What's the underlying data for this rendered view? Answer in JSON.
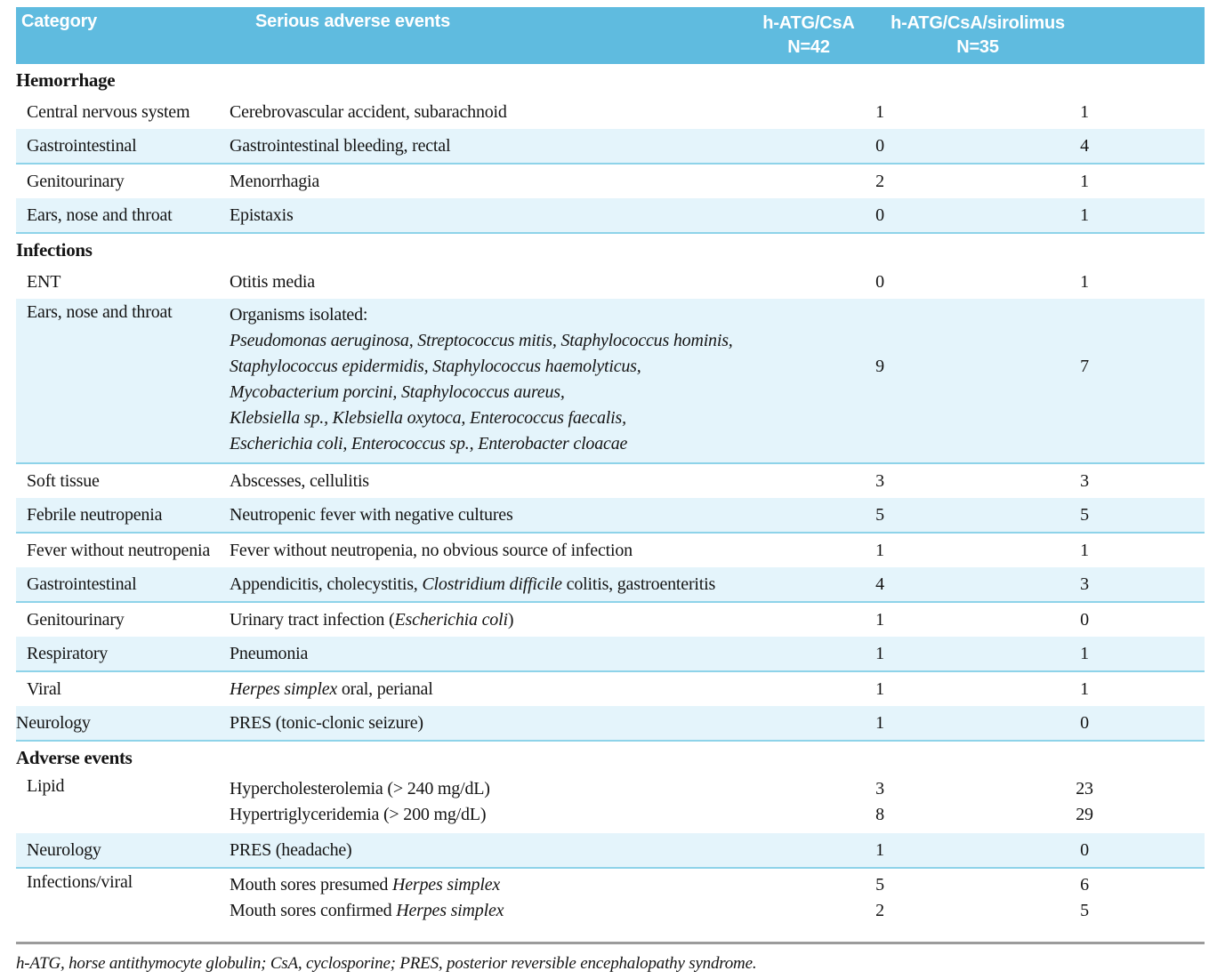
{
  "colors": {
    "header_bg": "#5fbbdf",
    "header_text": "#ffffff",
    "stripe_bg": "#e4f4fb",
    "stripe_line": "#8ed3e9",
    "body_text": "#141414",
    "footnote_rule": "#9b9b9b"
  },
  "header": {
    "category": "Category",
    "events": "Serious adverse events",
    "arm1": {
      "name": "h-ATG/CsA",
      "n": "N=42"
    },
    "arm2": {
      "name": "h-ATG/CsA/sirolimus",
      "n": "N=35"
    }
  },
  "sections": [
    {
      "title": "Hemorrhage",
      "rows": [
        {
          "category": "Central nervous system",
          "indent": true,
          "stripe": false,
          "events": [
            [
              {
                "t": "Cerebrovascular accident, subarachnoid"
              }
            ]
          ],
          "arm1": [
            "1"
          ],
          "arm2": [
            "1"
          ]
        },
        {
          "category": "Gastrointestinal",
          "indent": true,
          "stripe": true,
          "events": [
            [
              {
                "t": "Gastrointestinal bleeding, rectal"
              }
            ]
          ],
          "arm1": [
            "0"
          ],
          "arm2": [
            "4"
          ]
        },
        {
          "category": "Genitourinary",
          "indent": true,
          "stripe": false,
          "events": [
            [
              {
                "t": "Menorrhagia"
              }
            ]
          ],
          "arm1": [
            "2"
          ],
          "arm2": [
            "1"
          ]
        },
        {
          "category": "Ears, nose and throat",
          "indent": true,
          "stripe": true,
          "events": [
            [
              {
                "t": "Epistaxis"
              }
            ]
          ],
          "arm1": [
            "0"
          ],
          "arm2": [
            "1"
          ]
        }
      ]
    },
    {
      "title": "Infections",
      "rows": [
        {
          "category": "ENT",
          "indent": true,
          "stripe": false,
          "events": [
            [
              {
                "t": "Otitis media"
              }
            ]
          ],
          "arm1": [
            "0"
          ],
          "arm2": [
            "1"
          ]
        },
        {
          "category": "Ears, nose and throat",
          "indent": true,
          "stripe": true,
          "voff": 2,
          "events": [
            [
              {
                "t": "Organisms isolated:"
              }
            ],
            [
              {
                "t": "Pseudomonas aeruginosa, Streptococcus mitis, Staphylococcus hominis,",
                "i": true
              }
            ],
            [
              {
                "t": "Staphylococcus epidermidis, Staphylococcus haemolyticus,",
                "i": true
              }
            ],
            [
              {
                "t": "Mycobacterium porcini, Staphylococcus aureus,",
                "i": true
              }
            ],
            [
              {
                "t": "Klebsiella sp., Klebsiella oxytoca, Enterococcus faecalis,",
                "i": true
              }
            ],
            [
              {
                "t": "Escherichia coli, Enterococcus sp., Enterobacter cloacae",
                "i": true
              }
            ]
          ],
          "arm1": [
            "9"
          ],
          "arm2": [
            "7"
          ]
        },
        {
          "category": "Soft tissue",
          "indent": true,
          "stripe": false,
          "events": [
            [
              {
                "t": "Abscesses, cellulitis"
              }
            ]
          ],
          "arm1": [
            "3"
          ],
          "arm2": [
            "3"
          ]
        },
        {
          "category": "Febrile neutropenia",
          "indent": true,
          "stripe": true,
          "events": [
            [
              {
                "t": "Neutropenic fever with negative cultures"
              }
            ]
          ],
          "arm1": [
            "5"
          ],
          "arm2": [
            "5"
          ]
        },
        {
          "category": "Fever without neutropenia",
          "indent": true,
          "stripe": false,
          "events": [
            [
              {
                "t": "Fever without neutropenia, no obvious source of infection"
              }
            ]
          ],
          "arm1": [
            "1"
          ],
          "arm2": [
            "1"
          ]
        },
        {
          "category": "Gastrointestinal",
          "indent": true,
          "stripe": true,
          "events": [
            [
              {
                "t": "Appendicitis, cholecystitis, "
              },
              {
                "t": "Clostridium difficile",
                "i": true
              },
              {
                "t": " colitis, gastroenteritis"
              }
            ]
          ],
          "arm1": [
            "4"
          ],
          "arm2": [
            "3"
          ]
        },
        {
          "category": "Genitourinary",
          "indent": true,
          "stripe": false,
          "events": [
            [
              {
                "t": "Urinary tract infection ("
              },
              {
                "t": "Escherichia coli",
                "i": true
              },
              {
                "t": ")"
              }
            ]
          ],
          "arm1": [
            "1"
          ],
          "arm2": [
            "0"
          ]
        },
        {
          "category": "Respiratory",
          "indent": true,
          "stripe": true,
          "events": [
            [
              {
                "t": "Pneumonia"
              }
            ]
          ],
          "arm1": [
            "1"
          ],
          "arm2": [
            "1"
          ]
        },
        {
          "category": "Viral",
          "indent": true,
          "stripe": false,
          "events": [
            [
              {
                "t": "Herpes simplex",
                "i": true
              },
              {
                "t": " oral, perianal"
              }
            ]
          ],
          "arm1": [
            "1"
          ],
          "arm2": [
            "1"
          ]
        },
        {
          "category": "Neurology",
          "indent": false,
          "stripe": true,
          "events": [
            [
              {
                "t": "PRES (tonic-clonic seizure)"
              }
            ]
          ],
          "arm1": [
            "1"
          ],
          "arm2": [
            "0"
          ]
        }
      ]
    },
    {
      "title": "Adverse events",
      "rows": [
        {
          "category": "Lipid",
          "indent": true,
          "stripe": false,
          "events": [
            [
              {
                "t": "Hypercholesterolemia (> 240 mg/dL)"
              }
            ],
            [
              {
                "t": "Hypertriglyceridemia (> 200 mg/dL)"
              }
            ]
          ],
          "arm1": [
            "3",
            "8"
          ],
          "arm2": [
            "23",
            "29"
          ]
        },
        {
          "category": "Neurology",
          "indent": true,
          "stripe": true,
          "events": [
            [
              {
                "t": "PRES (headache)"
              }
            ]
          ],
          "arm1": [
            "1"
          ],
          "arm2": [
            "0"
          ]
        },
        {
          "category": "Infections/viral",
          "indent": true,
          "stripe": false,
          "events": [
            [
              {
                "t": "Mouth sores presumed "
              },
              {
                "t": "Herpes simplex",
                "i": true
              }
            ],
            [
              {
                "t": "Mouth sores confirmed "
              },
              {
                "t": "Herpes simplex",
                "i": true
              }
            ]
          ],
          "arm1": [
            "5",
            "2"
          ],
          "arm2": [
            "6",
            "5"
          ]
        }
      ]
    }
  ],
  "footnote": "h-ATG, horse antithymocyte globulin; CsA, cyclosporine; PRES, posterior reversible encephalopathy syndrome."
}
